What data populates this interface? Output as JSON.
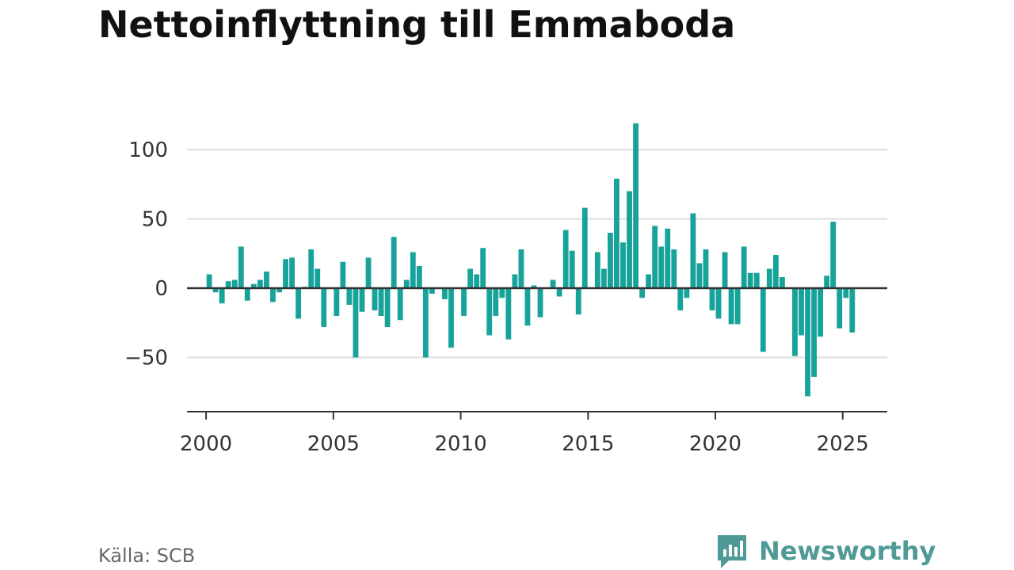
{
  "header": {
    "title": "Nettoinflyttning till Emmaboda"
  },
  "footer": {
    "source": "Källa: SCB",
    "brand": "Newsworthy"
  },
  "colors": {
    "bar": "#17a39a",
    "zero_line": "#333333",
    "grid": "#dddddd",
    "brand": "#4f9a96"
  },
  "chart_data": {
    "type": "bar",
    "title": "Nettoinflyttning till Emmaboda",
    "xlabel": "",
    "ylabel": "",
    "grid": true,
    "xlim": [
      1999.25,
      2026.75
    ],
    "ylim": [
      -90,
      130
    ],
    "x_ticks": [
      2000,
      2005,
      2010,
      2015,
      2020,
      2025
    ],
    "y_ticks": [
      -50,
      0,
      50,
      100
    ],
    "y_tick_labels": [
      "−50",
      "0",
      "50",
      "100"
    ],
    "x": [
      2000.125,
      2000.375,
      2000.625,
      2000.875,
      2001.125,
      2001.375,
      2001.625,
      2001.875,
      2002.125,
      2002.375,
      2002.625,
      2002.875,
      2003.125,
      2003.375,
      2003.625,
      2003.875,
      2004.125,
      2004.375,
      2004.625,
      2004.875,
      2005.125,
      2005.375,
      2005.625,
      2005.875,
      2006.125,
      2006.375,
      2006.625,
      2006.875,
      2007.125,
      2007.375,
      2007.625,
      2007.875,
      2008.125,
      2008.375,
      2008.625,
      2008.875,
      2009.125,
      2009.375,
      2009.625,
      2009.875,
      2010.125,
      2010.375,
      2010.625,
      2010.875,
      2011.125,
      2011.375,
      2011.625,
      2011.875,
      2012.125,
      2012.375,
      2012.625,
      2012.875,
      2013.125,
      2013.375,
      2013.625,
      2013.875,
      2014.125,
      2014.375,
      2014.625,
      2014.875,
      2015.125,
      2015.375,
      2015.625,
      2015.875,
      2016.125,
      2016.375,
      2016.625,
      2016.875,
      2017.125,
      2017.375,
      2017.625,
      2017.875,
      2018.125,
      2018.375,
      2018.625,
      2018.875,
      2019.125,
      2019.375,
      2019.625,
      2019.875,
      2020.125,
      2020.375,
      2020.625,
      2020.875,
      2021.125,
      2021.375,
      2021.625,
      2021.875,
      2022.125,
      2022.375,
      2022.625,
      2022.875,
      2023.125,
      2023.375,
      2023.625,
      2023.875,
      2024.125,
      2024.375,
      2024.625,
      2024.875,
      2025.125,
      2025.375
    ],
    "values": [
      10,
      -3,
      -11,
      5,
      6,
      30,
      -9,
      3,
      6,
      12,
      -10,
      -3,
      21,
      22,
      -22,
      1,
      28,
      14,
      -28,
      0,
      -20,
      19,
      -12,
      -50,
      -17,
      22,
      -16,
      -20,
      -28,
      37,
      -23,
      6,
      26,
      16,
      -50,
      -4,
      0,
      -8,
      -43,
      0,
      -20,
      14,
      10,
      29,
      -34,
      -20,
      -7,
      -37,
      10,
      28,
      -27,
      2,
      -21,
      0,
      6,
      -6,
      42,
      27,
      -19,
      58,
      0,
      26,
      14,
      40,
      79,
      33,
      70,
      119,
      -7,
      10,
      45,
      30,
      43,
      28,
      -16,
      -7,
      54,
      18,
      28,
      -16,
      -22,
      26,
      -26,
      -26,
      30,
      11,
      11,
      -46,
      14,
      24,
      8,
      0,
      -49,
      -34,
      -78,
      -64,
      -35,
      9,
      48,
      -29,
      -7,
      -32
    ]
  }
}
